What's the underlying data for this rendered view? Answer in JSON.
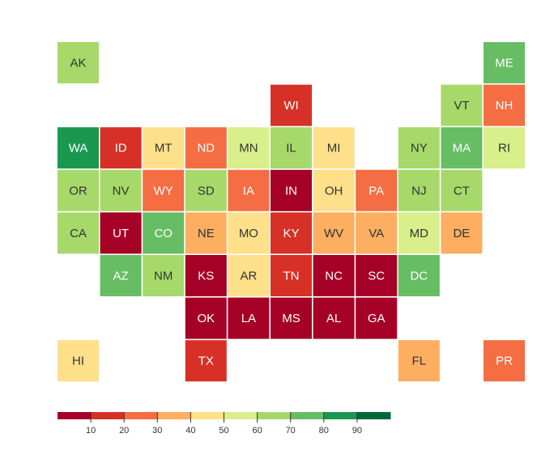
{
  "chart_data": {
    "type": "tile-map",
    "states": [
      {
        "label": "AK",
        "value": 65
      },
      {
        "label": "ME",
        "value": 75
      },
      {
        "label": "WI",
        "value": 15
      },
      {
        "label": "VT",
        "value": 65
      },
      {
        "label": "NH",
        "value": 25
      },
      {
        "label": "WA",
        "value": 85
      },
      {
        "label": "ID",
        "value": 15
      },
      {
        "label": "MT",
        "value": 45
      },
      {
        "label": "ND",
        "value": 25
      },
      {
        "label": "MN",
        "value": 55
      },
      {
        "label": "IL",
        "value": 65
      },
      {
        "label": "MI",
        "value": 45
      },
      {
        "label": "NY",
        "value": 65
      },
      {
        "label": "MA",
        "value": 75
      },
      {
        "label": "RI",
        "value": 55
      },
      {
        "label": "OR",
        "value": 65
      },
      {
        "label": "NV",
        "value": 65
      },
      {
        "label": "WY",
        "value": 25
      },
      {
        "label": "SD",
        "value": 65
      },
      {
        "label": "IA",
        "value": 25
      },
      {
        "label": "IN",
        "value": 5
      },
      {
        "label": "OH",
        "value": 45
      },
      {
        "label": "PA",
        "value": 25
      },
      {
        "label": "NJ",
        "value": 65
      },
      {
        "label": "CT",
        "value": 65
      },
      {
        "label": "CA",
        "value": 65
      },
      {
        "label": "UT",
        "value": 5
      },
      {
        "label": "CO",
        "value": 75
      },
      {
        "label": "NE",
        "value": 35
      },
      {
        "label": "MO",
        "value": 45
      },
      {
        "label": "KY",
        "value": 15
      },
      {
        "label": "WV",
        "value": 35
      },
      {
        "label": "VA",
        "value": 35
      },
      {
        "label": "MD",
        "value": 55
      },
      {
        "label": "DE",
        "value": 35
      },
      {
        "label": "AZ",
        "value": 75
      },
      {
        "label": "NM",
        "value": 65
      },
      {
        "label": "KS",
        "value": 5
      },
      {
        "label": "AR",
        "value": 45
      },
      {
        "label": "TN",
        "value": 15
      },
      {
        "label": "NC",
        "value": 5
      },
      {
        "label": "SC",
        "value": 5
      },
      {
        "label": "DC",
        "value": 75
      },
      {
        "label": "OK",
        "value": 5
      },
      {
        "label": "LA",
        "value": 5
      },
      {
        "label": "MS",
        "value": 5
      },
      {
        "label": "AL",
        "value": 5
      },
      {
        "label": "GA",
        "value": 5
      },
      {
        "label": "HI",
        "value": 45
      },
      {
        "label": "TX",
        "value": 15
      },
      {
        "label": "FL",
        "value": 35
      },
      {
        "label": "PR",
        "value": 25
      }
    ],
    "legend": {
      "lim": [
        0,
        100
      ],
      "ticks": [
        10,
        20,
        30,
        40,
        50,
        60,
        70,
        80,
        90
      ],
      "colors": [
        "#a50026",
        "#d73027",
        "#f46d43",
        "#fdae61",
        "#fee08b",
        "#d9ef8b",
        "#a6d96a",
        "#66bd63",
        "#1a9850",
        "#006837"
      ]
    }
  }
}
